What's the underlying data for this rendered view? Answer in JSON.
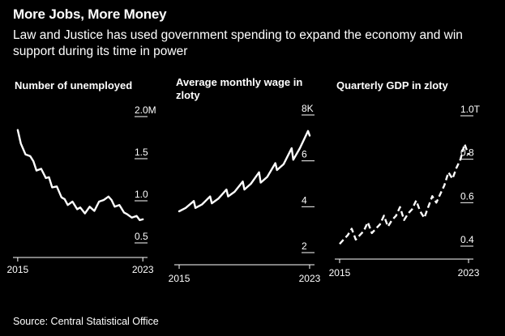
{
  "header": {
    "title": "More Jobs, More Money",
    "subtitle": "Law and Justice has used government spending to expand the economy and win support during its time in power"
  },
  "footer": {
    "source": "Source: Central Statistical Office"
  },
  "colors": {
    "background": "#000000",
    "line": "#ffffff",
    "gridline": "#ffffff"
  },
  "chart_data": [
    {
      "type": "line",
      "title": "Number of unemployed",
      "x_ticks": [
        "2015",
        "2023"
      ],
      "y_ticks": [
        "2.0M",
        "1.5",
        "1.0",
        "0.5"
      ],
      "ylim": [
        0.5,
        2.0
      ],
      "xlim": [
        2014.8,
        2023.3
      ],
      "line_style": "solid",
      "series": [
        {
          "x": [
            2015.0,
            2015.2,
            2015.5,
            2015.8,
            2016.0,
            2016.2,
            2016.5,
            2016.8,
            2017.0,
            2017.2,
            2017.5,
            2017.8,
            2018.0,
            2018.2,
            2018.5,
            2018.8,
            2019.0,
            2019.3,
            2019.6,
            2019.9,
            2020.2,
            2020.5,
            2020.8,
            2021.0,
            2021.2,
            2021.5,
            2021.8,
            2022.0,
            2022.3,
            2022.6,
            2022.8,
            2023.0
          ],
          "y": [
            1.84,
            1.68,
            1.55,
            1.53,
            1.47,
            1.36,
            1.38,
            1.27,
            1.28,
            1.16,
            1.17,
            1.04,
            1.02,
            0.95,
            0.99,
            0.9,
            0.92,
            0.85,
            0.93,
            0.88,
            0.99,
            1.01,
            1.05,
            1.01,
            0.93,
            0.95,
            0.86,
            0.84,
            0.8,
            0.82,
            0.77,
            0.78
          ]
        }
      ]
    },
    {
      "type": "line",
      "title": "Average monthly wage in zloty",
      "x_ticks": [
        "2015",
        "2023"
      ],
      "y_ticks": [
        "8K",
        "6",
        "4",
        "2"
      ],
      "ylim": [
        2,
        8
      ],
      "xlim": [
        2014.8,
        2023.3
      ],
      "line_style": "solid",
      "series": [
        {
          "x": [
            2015.0,
            2015.4,
            2015.9,
            2016.0,
            2016.4,
            2016.9,
            2017.0,
            2017.4,
            2017.9,
            2018.0,
            2018.4,
            2018.9,
            2019.0,
            2019.4,
            2019.9,
            2020.0,
            2020.4,
            2020.9,
            2021.0,
            2021.4,
            2021.9,
            2022.0,
            2022.4,
            2022.9,
            2023.0
          ],
          "y": [
            3.8,
            3.95,
            4.25,
            3.95,
            4.1,
            4.45,
            4.15,
            4.35,
            4.75,
            4.45,
            4.65,
            5.1,
            4.75,
            5.0,
            5.5,
            5.05,
            5.3,
            5.9,
            5.6,
            5.85,
            6.55,
            6.05,
            6.55,
            7.3,
            7.1
          ]
        }
      ]
    },
    {
      "type": "line",
      "title": "Quarterly GDP in zloty",
      "x_ticks": [
        "2015",
        "2023"
      ],
      "y_ticks": [
        "1.0T",
        "0.8",
        "0.6",
        "0.4"
      ],
      "ylim": [
        0.4,
        1.0
      ],
      "xlim": [
        2014.8,
        2023.3
      ],
      "line_style": "dashed",
      "series": [
        {
          "x": [
            2015.0,
            2015.25,
            2015.5,
            2015.75,
            2016.0,
            2016.25,
            2016.5,
            2016.75,
            2017.0,
            2017.25,
            2017.5,
            2017.75,
            2018.0,
            2018.25,
            2018.5,
            2018.75,
            2019.0,
            2019.25,
            2019.5,
            2019.75,
            2020.0,
            2020.25,
            2020.5,
            2020.75,
            2021.0,
            2021.25,
            2021.5,
            2021.75,
            2022.0,
            2022.25,
            2022.5,
            2022.75,
            2023.0
          ],
          "y": [
            0.41,
            0.43,
            0.45,
            0.48,
            0.43,
            0.45,
            0.47,
            0.51,
            0.46,
            0.48,
            0.5,
            0.54,
            0.49,
            0.52,
            0.54,
            0.58,
            0.52,
            0.55,
            0.57,
            0.61,
            0.56,
            0.53,
            0.58,
            0.63,
            0.6,
            0.64,
            0.68,
            0.74,
            0.71,
            0.76,
            0.8,
            0.87,
            0.82
          ]
        }
      ]
    }
  ]
}
